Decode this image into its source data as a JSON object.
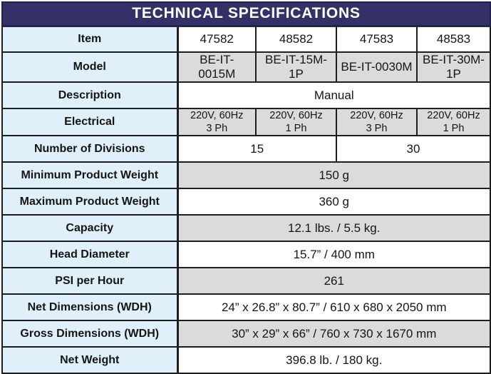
{
  "title": "TECHNICAL SPECIFICATIONS",
  "colors": {
    "header_bg": "#343168",
    "header_text": "#ffffff",
    "header_border": "#23224b",
    "label_bg": "#dff0fa",
    "gray_bg": "#dbdbdb",
    "white_bg": "#ffffff",
    "grid_border": "#1e1e1e"
  },
  "table": {
    "rows": [
      {
        "label": "Item",
        "span": 1,
        "shade": "white",
        "cells": [
          "47582",
          "48582",
          "47583",
          "48583"
        ]
      },
      {
        "label": "Model",
        "span": 1,
        "shade": "gray",
        "cells": [
          "BE-IT-0015M",
          "BE-IT-15M-1P",
          "BE-IT-0030M",
          "BE-IT-30M-1P"
        ]
      },
      {
        "label": "Description",
        "span": 4,
        "shade": "white",
        "cells": [
          "Manual"
        ]
      },
      {
        "label": "Electrical",
        "span": 1,
        "shade": "gray",
        "cells": [
          "220V, 60Hz\n3 Ph",
          "220V, 60Hz\n1 Ph",
          "220V, 60Hz\n3 Ph",
          "220V, 60Hz\n1 Ph"
        ]
      },
      {
        "label": "Number of Divisions",
        "span": 2,
        "shade": "white",
        "cells": [
          "15",
          "30"
        ]
      },
      {
        "label": "Minimum Product Weight",
        "span": 4,
        "shade": "gray",
        "cells": [
          "150 g"
        ]
      },
      {
        "label": "Maximum Product Weight",
        "span": 4,
        "shade": "white",
        "cells": [
          "360 g"
        ]
      },
      {
        "label": "Capacity",
        "span": 4,
        "shade": "gray",
        "cells": [
          "12.1 lbs. / 5.5 kg."
        ]
      },
      {
        "label": "Head Diameter",
        "span": 4,
        "shade": "white",
        "cells": [
          "15.7” / 400 mm"
        ]
      },
      {
        "label": "PSI per Hour",
        "span": 4,
        "shade": "gray",
        "cells": [
          "261"
        ]
      },
      {
        "label": "Net Dimensions (WDH)",
        "span": 4,
        "shade": "white",
        "cells": [
          "24” x 26.8” x 80.7” / 610 x 680 x 2050 mm"
        ]
      },
      {
        "label": "Gross Dimensions (WDH)",
        "span": 4,
        "shade": "gray",
        "cells": [
          "30” x 29” x 66” / 760 x 730 x 1670 mm"
        ]
      },
      {
        "label": "Net Weight",
        "span": 4,
        "shade": "white",
        "cells": [
          "396.8 lb. / 180 kg."
        ]
      }
    ]
  }
}
